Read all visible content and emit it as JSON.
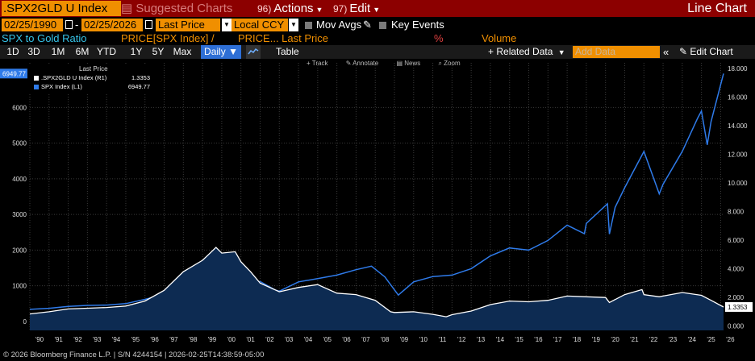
{
  "toolbar": {
    "ticker": ".SPX2GLD U Index",
    "suggested_charts": "Suggested Charts",
    "actions_num": "96)",
    "actions": "Actions",
    "edit_num": "97)",
    "edit": "Edit",
    "title": "Line Chart"
  },
  "settings": {
    "start_date": "02/25/1990",
    "separator": "-",
    "end_date": "02/25/2026",
    "price_field": "Last Price",
    "currency": "Local CCY",
    "mov_avgs": "Mov Avgs",
    "key_events": "Key Events"
  },
  "legend_row": {
    "name": "SPX to Gold Ratio",
    "expr1": "PRICE[SPX Index] /",
    "expr2": "PRICE... Last Price",
    "pct": "%",
    "volume": "Volume"
  },
  "timeframes": [
    "1D",
    "3D",
    "1M",
    "6M",
    "YTD",
    "1Y",
    "5Y",
    "Max"
  ],
  "controls": {
    "frequency": "Daily",
    "table": "Table",
    "related_data": "Related Data",
    "add_data_placeholder": "Add Data",
    "edit_chart": "Edit Chart"
  },
  "chart_tools": {
    "track": "Track",
    "annotate": "Annotate",
    "news": "News",
    "zoom": "Zoom"
  },
  "chart_legend": {
    "header": "Last Price",
    "rows": [
      {
        "label": ".SPX2GLD U Index  (R1)",
        "value": "1.3353"
      },
      {
        "label": "SPX Index  (L1)",
        "value": "6949.77"
      }
    ]
  },
  "colors": {
    "ratio": "#ffffff",
    "spx": "#2f7bea",
    "area_fill": "#0d2b52",
    "accent": "#f08f00",
    "header_bg": "#8c0000"
  },
  "footer": {
    "text": "© 2026 Bloomberg Finance L.P.   |   S/N 4244154   |   2026-02-25T14:38:59-05:00"
  },
  "chart_data": {
    "type": "line",
    "title": "SPX to Gold Ratio",
    "x_range": [
      1990,
      2026.15
    ],
    "x_tick_labels": [
      "'90",
      "'91",
      "'92",
      "'93",
      "'94",
      "'95",
      "'96",
      "'97",
      "'98",
      "'99",
      "'00",
      "'01",
      "'02",
      "'03",
      "'04",
      "'05",
      "'06",
      "'07",
      "'08",
      "'09",
      "'10",
      "'11",
      "'12",
      "'13",
      "'14",
      "'15",
      "'16",
      "'17",
      "'18",
      "'19",
      "'20",
      "'21",
      "'22",
      "'23",
      "'24",
      "'25",
      "'26"
    ],
    "left_axis": {
      "label": "SPX Index (L1)",
      "ylim": [
        -250,
        7250
      ],
      "ticks": [
        0,
        1000,
        2000,
        3000,
        4000,
        5000,
        6000
      ],
      "tick_labels": [
        "0",
        "1000",
        "2000",
        "3000",
        "4000",
        "5000",
        "6000"
      ],
      "last_value_label": "6949.77"
    },
    "right_axis": {
      "label": ".SPX2GLD U Index (R1)",
      "ylim": [
        -0.3,
        18.4
      ],
      "ticks": [
        0,
        2,
        4,
        6,
        8,
        10,
        12,
        14,
        16,
        18
      ],
      "tick_labels": [
        "0.000",
        "2.000",
        "4.000",
        "6.000",
        "8.000",
        "10.000",
        "12.000",
        "14.000",
        "16.000",
        "18.000"
      ],
      "last_value_label": "1.3353"
    },
    "series": [
      {
        "name": "SPX Index (L1)",
        "axis": "left",
        "style": "line",
        "x": [
          1990,
          1991,
          1992,
          1993,
          1994,
          1995,
          1996,
          1997,
          1998,
          1999,
          2000,
          2000.7,
          2001,
          2001.7,
          2002,
          2002.8,
          2003,
          2004,
          2005,
          2006,
          2007,
          2007.8,
          2008.5,
          2009.2,
          2010,
          2011,
          2012,
          2013,
          2014,
          2015,
          2016,
          2017,
          2018,
          2018.9,
          2019,
          2020.1,
          2020.2,
          2020.5,
          2021,
          2022,
          2022.8,
          2023,
          2024,
          2024.8,
          2025,
          2025.3,
          2025.5,
          2026.15
        ],
        "values": [
          340,
          370,
          420,
          450,
          460,
          500,
          620,
          760,
          980,
          1280,
          1460,
          1430,
          1300,
          1100,
          1120,
          880,
          850,
          1110,
          1200,
          1300,
          1450,
          1550,
          1250,
          740,
          1110,
          1260,
          1300,
          1480,
          1840,
          2060,
          2000,
          2270,
          2700,
          2460,
          2750,
          3300,
          2450,
          3200,
          3750,
          4766,
          3580,
          3850,
          4770,
          5700,
          5900,
          4950,
          5600,
          6949.77
        ]
      },
      {
        "name": ".SPX2GLD U Index (R1)",
        "axis": "right",
        "style": "area",
        "x": [
          1990,
          1991,
          1992,
          1993,
          1994,
          1995,
          1996,
          1997,
          1998,
          1999,
          1999.7,
          2000,
          2000.7,
          2001,
          2001.5,
          2002,
          2003,
          2004,
          2005,
          2006,
          2007,
          2008,
          2008.8,
          2009,
          2010,
          2011,
          2011.7,
          2012,
          2013,
          2014,
          2015,
          2016,
          2017,
          2018,
          2019,
          2020,
          2020.2,
          2021,
          2021.9,
          2022,
          2022.8,
          2023,
          2024,
          2025,
          2025.5,
          2026.15
        ],
        "values": [
          0.85,
          1.0,
          1.2,
          1.25,
          1.3,
          1.4,
          1.75,
          2.5,
          3.8,
          4.6,
          5.5,
          5.1,
          5.2,
          4.5,
          3.8,
          3.0,
          2.4,
          2.7,
          2.9,
          2.3,
          2.2,
          1.8,
          1.0,
          0.95,
          1.0,
          0.82,
          0.65,
          0.8,
          1.05,
          1.5,
          1.75,
          1.7,
          1.8,
          2.1,
          2.05,
          2.0,
          1.65,
          2.2,
          2.55,
          2.2,
          2.05,
          2.1,
          2.35,
          2.15,
          1.8,
          1.3353
        ]
      }
    ]
  }
}
